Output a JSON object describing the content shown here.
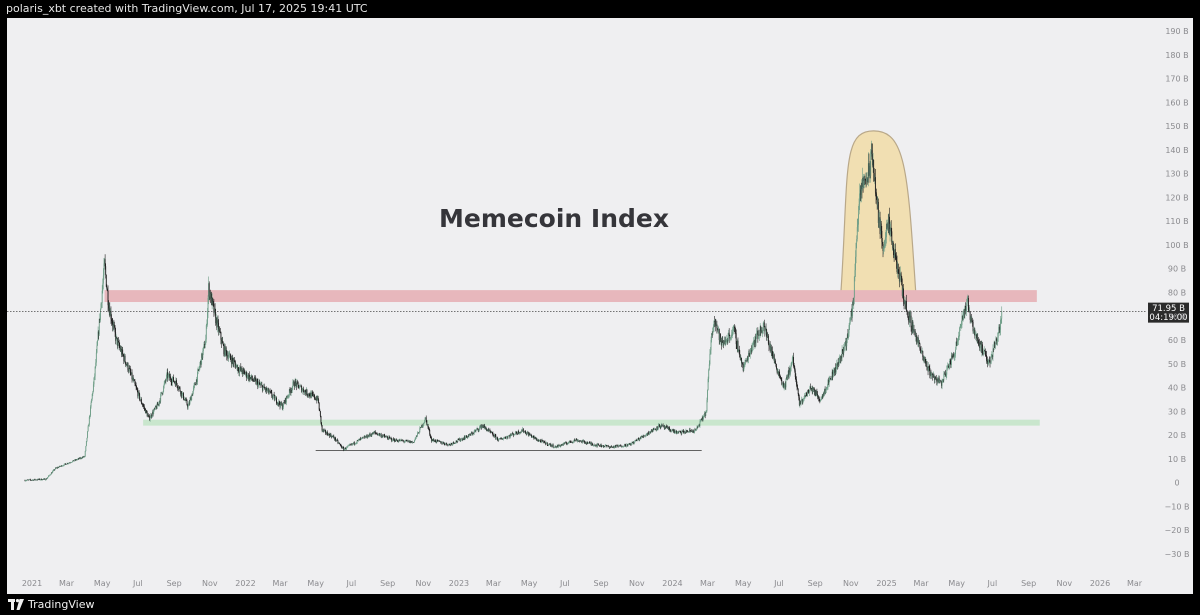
{
  "header": {
    "text": "polaris_xbt created with TradingView.com, Jul 17, 2025 19:41 UTC"
  },
  "footer": {
    "brand": "TradingView"
  },
  "colors": {
    "background": "#efeff1",
    "up": "#6f9e88",
    "down": "#1f1f1f",
    "resistance_zone": "#e7b7bc",
    "support_zone": "#c9e6cd",
    "bubble_fill": "#f1dfb2",
    "bubble_stroke": "#b9a889",
    "price_badge": "#2b2b2b"
  },
  "chart_data": {
    "type": "candlestick",
    "title": "Memecoin Index",
    "y_axis": {
      "unit": "B",
      "min": -35,
      "max": 195,
      "ticks": [
        -30,
        -20,
        -10,
        0,
        10,
        20,
        30,
        40,
        50,
        60,
        70,
        80,
        90,
        100,
        110,
        120,
        130,
        140,
        150,
        160,
        170,
        180,
        190
      ],
      "tick_labels": [
        "−30 B",
        "−20 B",
        "−10 B",
        "0",
        "10 B",
        "20 B",
        "30 B",
        "40 B",
        "50 B",
        "60 B",
        "70 B",
        "80 B",
        "90 B",
        "100 B",
        "110 B",
        "120 B",
        "130 B",
        "140 B",
        "150 B",
        "160 B",
        "170 B",
        "180 B",
        "190 B"
      ]
    },
    "x_axis": {
      "start": "2020-12-20",
      "end": "2026-04-20",
      "ticks": [
        {
          "date": "2021-01-01",
          "label": "2021",
          "major": true
        },
        {
          "date": "2021-03-01",
          "label": "Mar"
        },
        {
          "date": "2021-05-01",
          "label": "May"
        },
        {
          "date": "2021-07-01",
          "label": "Jul"
        },
        {
          "date": "2021-09-01",
          "label": "Sep"
        },
        {
          "date": "2021-11-01",
          "label": "Nov"
        },
        {
          "date": "2022-01-01",
          "label": "2022",
          "major": true
        },
        {
          "date": "2022-03-01",
          "label": "Mar"
        },
        {
          "date": "2022-05-01",
          "label": "May"
        },
        {
          "date": "2022-07-01",
          "label": "Jul"
        },
        {
          "date": "2022-09-01",
          "label": "Sep"
        },
        {
          "date": "2022-11-01",
          "label": "Nov"
        },
        {
          "date": "2023-01-01",
          "label": "2023",
          "major": true
        },
        {
          "date": "2023-03-01",
          "label": "Mar"
        },
        {
          "date": "2023-05-01",
          "label": "May"
        },
        {
          "date": "2023-07-01",
          "label": "Jul"
        },
        {
          "date": "2023-09-01",
          "label": "Sep"
        },
        {
          "date": "2023-11-01",
          "label": "Nov"
        },
        {
          "date": "2024-01-01",
          "label": "2024",
          "major": true
        },
        {
          "date": "2024-03-01",
          "label": "Mar"
        },
        {
          "date": "2024-05-01",
          "label": "May"
        },
        {
          "date": "2024-07-01",
          "label": "Jul"
        },
        {
          "date": "2024-09-01",
          "label": "Sep"
        },
        {
          "date": "2024-11-01",
          "label": "Nov"
        },
        {
          "date": "2025-01-01",
          "label": "2025",
          "major": true
        },
        {
          "date": "2025-03-01",
          "label": "Mar"
        },
        {
          "date": "2025-05-01",
          "label": "May"
        },
        {
          "date": "2025-07-01",
          "label": "Jul"
        },
        {
          "date": "2025-09-01",
          "label": "Sep"
        },
        {
          "date": "2025-11-01",
          "label": "Nov"
        },
        {
          "date": "2026-01-01",
          "label": "2026",
          "major": true
        },
        {
          "date": "2026-03-01",
          "label": "Mar"
        }
      ]
    },
    "price_series": {
      "approximate_path": [
        [
          "2020-12-20",
          1
        ],
        [
          "2021-01-25",
          1.5
        ],
        [
          "2021-02-10",
          6
        ],
        [
          "2021-03-01",
          8
        ],
        [
          "2021-04-01",
          11
        ],
        [
          "2021-04-18",
          45
        ],
        [
          "2021-05-05",
          92
        ],
        [
          "2021-05-12",
          75
        ],
        [
          "2021-05-25",
          60
        ],
        [
          "2021-06-15",
          48
        ],
        [
          "2021-07-05",
          35
        ],
        [
          "2021-07-20",
          27
        ],
        [
          "2021-08-05",
          33
        ],
        [
          "2021-08-20",
          45
        ],
        [
          "2021-09-05",
          42
        ],
        [
          "2021-09-25",
          32
        ],
        [
          "2021-10-10",
          44
        ],
        [
          "2021-10-25",
          60
        ],
        [
          "2021-10-30",
          82
        ],
        [
          "2021-11-10",
          70
        ],
        [
          "2021-11-25",
          56
        ],
        [
          "2021-12-20",
          48
        ],
        [
          "2022-01-15",
          43
        ],
        [
          "2022-02-10",
          38
        ],
        [
          "2022-03-05",
          32
        ],
        [
          "2022-03-25",
          42
        ],
        [
          "2022-04-15",
          38
        ],
        [
          "2022-05-05",
          35
        ],
        [
          "2022-05-12",
          22
        ],
        [
          "2022-06-01",
          19
        ],
        [
          "2022-06-18",
          14
        ],
        [
          "2022-07-15",
          18
        ],
        [
          "2022-08-10",
          21
        ],
        [
          "2022-09-10",
          18
        ],
        [
          "2022-10-15",
          17
        ],
        [
          "2022-11-05",
          27
        ],
        [
          "2022-11-15",
          18
        ],
        [
          "2022-12-15",
          16
        ],
        [
          "2023-01-20",
          20
        ],
        [
          "2023-02-10",
          24
        ],
        [
          "2023-03-10",
          18
        ],
        [
          "2023-04-20",
          22
        ],
        [
          "2023-05-15",
          18
        ],
        [
          "2023-06-15",
          15
        ],
        [
          "2023-07-20",
          18
        ],
        [
          "2023-08-20",
          16
        ],
        [
          "2023-09-20",
          15
        ],
        [
          "2023-10-20",
          16
        ],
        [
          "2023-11-15",
          20
        ],
        [
          "2023-12-10",
          24
        ],
        [
          "2024-01-10",
          21
        ],
        [
          "2024-02-10",
          22
        ],
        [
          "2024-02-28",
          30
        ],
        [
          "2024-03-05",
          55
        ],
        [
          "2024-03-12",
          70
        ],
        [
          "2024-03-25",
          58
        ],
        [
          "2024-04-15",
          64
        ],
        [
          "2024-05-01",
          48
        ],
        [
          "2024-05-20",
          60
        ],
        [
          "2024-06-05",
          66
        ],
        [
          "2024-06-25",
          50
        ],
        [
          "2024-07-10",
          40
        ],
        [
          "2024-07-25",
          52
        ],
        [
          "2024-08-05",
          33
        ],
        [
          "2024-08-25",
          40
        ],
        [
          "2024-09-10",
          35
        ],
        [
          "2024-09-25",
          43
        ],
        [
          "2024-10-10",
          50
        ],
        [
          "2024-10-25",
          60
        ],
        [
          "2024-11-05",
          75
        ],
        [
          "2024-11-12",
          110
        ],
        [
          "2024-11-20",
          125
        ],
        [
          "2024-12-01",
          130
        ],
        [
          "2024-12-08",
          138
        ],
        [
          "2024-12-15",
          118
        ],
        [
          "2024-12-25",
          100
        ],
        [
          "2025-01-05",
          108
        ],
        [
          "2025-01-15",
          95
        ],
        [
          "2025-01-25",
          85
        ],
        [
          "2025-02-05",
          72
        ],
        [
          "2025-02-20",
          62
        ],
        [
          "2025-03-05",
          52
        ],
        [
          "2025-03-20",
          45
        ],
        [
          "2025-04-05",
          42
        ],
        [
          "2025-04-15",
          48
        ],
        [
          "2025-04-28",
          55
        ],
        [
          "2025-05-10",
          70
        ],
        [
          "2025-05-20",
          75
        ],
        [
          "2025-06-01",
          63
        ],
        [
          "2025-06-15",
          55
        ],
        [
          "2025-06-25",
          50
        ],
        [
          "2025-07-05",
          58
        ],
        [
          "2025-07-14",
          66
        ],
        [
          "2025-07-17",
          71.95
        ]
      ],
      "last_value": 71.95,
      "last_value_label": "71.95 B",
      "countdown_label": "04:19:00"
    },
    "annotations": {
      "resistance_zone": {
        "x_start": "2021-05-05",
        "x_end": "2025-09-15",
        "y_low": 76,
        "y_high": 81
      },
      "support_zone": {
        "x_start": "2021-07-10",
        "x_end": "2025-09-20",
        "y_low": 24,
        "y_high": 26.5
      },
      "base_line": {
        "x_start": "2022-05-01",
        "x_end": "2024-02-20",
        "y": 13.5
      },
      "bubble": {
        "x_start": "2024-10-15",
        "x_end": "2025-02-20",
        "peak_date": "2024-12-10",
        "base_y": 80,
        "peak_y": 148
      },
      "last_price_line": {
        "y": 71.95
      }
    },
    "grid": false,
    "legend": "none"
  }
}
